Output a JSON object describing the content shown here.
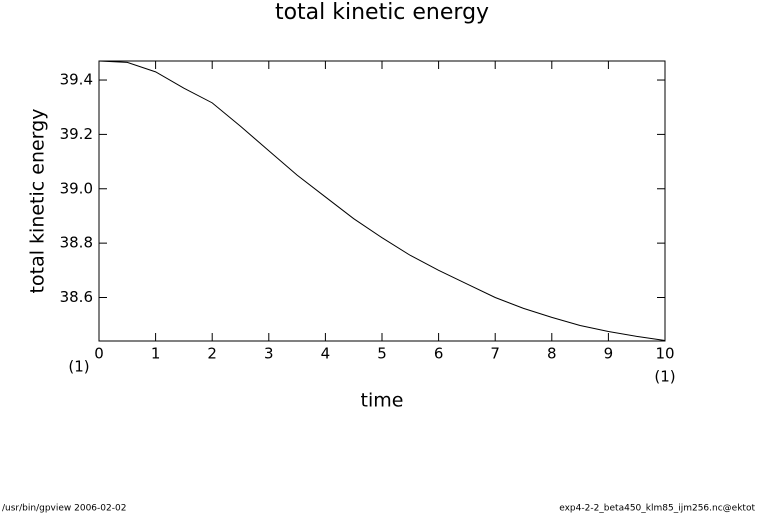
{
  "chart_data": {
    "type": "line",
    "title": "total kinetic energy",
    "xlabel": "time",
    "ylabel": "total kinetic energy",
    "x_unit_left": "(1)",
    "x_unit_right": "(1)",
    "footer_left": "/usr/bin/gpview   2006-02-02",
    "footer_right": "exp4-2-2_beta450_klm85_ijm256.nc@ektot",
    "x": [
      0,
      0.5,
      1,
      1.5,
      2,
      2.5,
      3,
      3.5,
      4,
      4.5,
      5,
      5.5,
      6,
      6.5,
      7,
      7.5,
      8,
      8.5,
      9,
      9.5,
      10
    ],
    "values": [
      39.47,
      39.465,
      39.43,
      39.37,
      39.316,
      39.23,
      39.14,
      39.05,
      38.97,
      38.89,
      38.82,
      38.755,
      38.7,
      38.65,
      38.6,
      38.56,
      38.527,
      38.497,
      38.475,
      38.457,
      38.442
    ],
    "color": "#000000",
    "xlim": [
      0,
      10
    ],
    "xticks": [
      0,
      1,
      2,
      3,
      4,
      5,
      6,
      7,
      8,
      9,
      10
    ],
    "ylim": [
      38.44,
      39.47
    ],
    "yticks": [
      38.6,
      38.8,
      {
        "value": 39,
        "label": "39.0"
      },
      39.2,
      39.4
    ]
  }
}
